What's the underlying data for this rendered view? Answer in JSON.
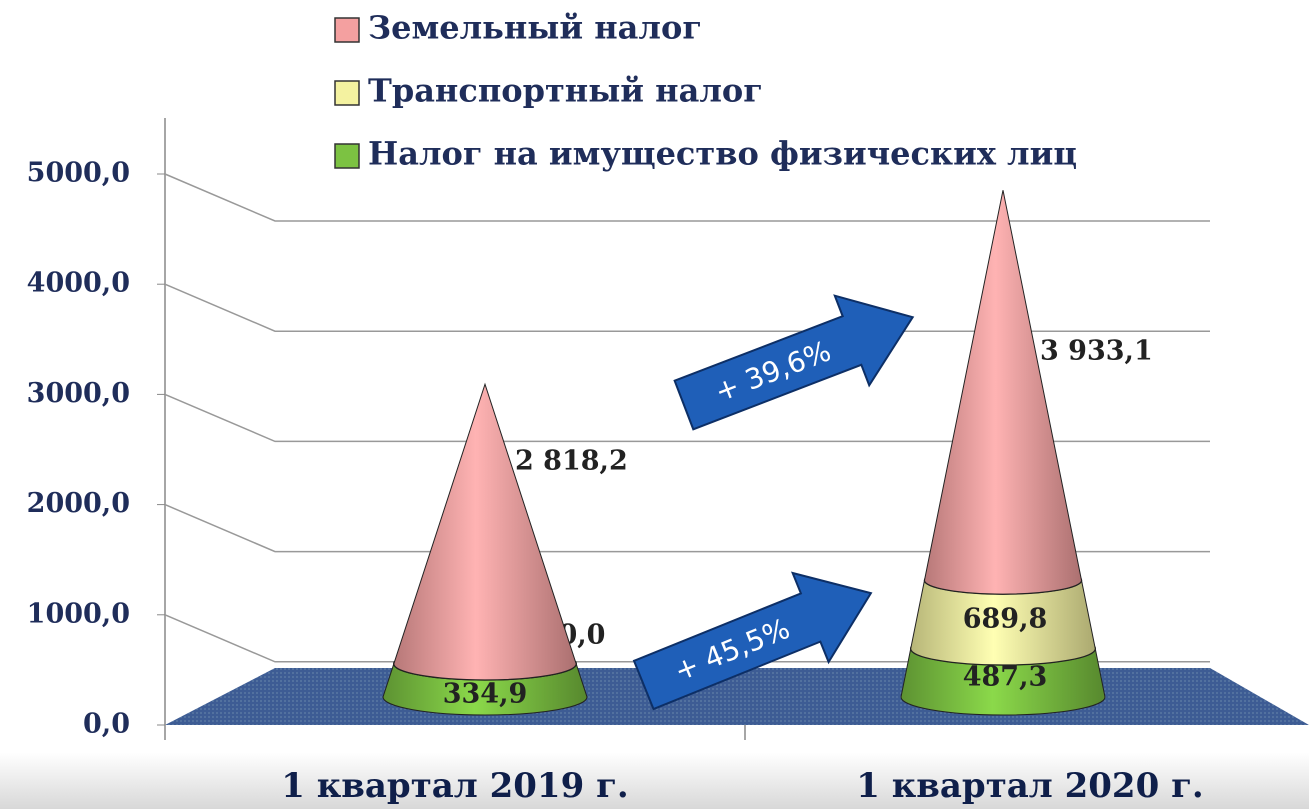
{
  "chart_data": {
    "type": "cone",
    "categories": [
      "1 квартал 2019 г.",
      "1 квартал 2020 г."
    ],
    "series": [
      {
        "name": "Налог на имущество физических лиц",
        "color": "#7cc242",
        "values": [
          334.9,
          487.3
        ],
        "value_labels": [
          "334,9",
          "487,3"
        ]
      },
      {
        "name": "Транспортный налог",
        "color": "#f4f2a0",
        "values": [
          0.0,
          689.8
        ],
        "value_labels": [
          "0,0",
          "689,8"
        ]
      },
      {
        "name": "Земельный налог",
        "color": "#f4a0a0",
        "values": [
          2818.2,
          3933.1
        ],
        "value_labels": [
          "2 818,2",
          "3 933,1"
        ]
      }
    ],
    "ylim": [
      0,
      5000
    ],
    "yticks": [
      {
        "value": 0,
        "label": "0,0"
      },
      {
        "value": 1000,
        "label": "1000,0"
      },
      {
        "value": 2000,
        "label": "2000,0"
      },
      {
        "value": 3000,
        "label": "3000,0"
      },
      {
        "value": 4000,
        "label": "4000,0"
      },
      {
        "value": 5000,
        "label": "5000,0"
      }
    ],
    "grid": true,
    "annotations": [
      "+ 39,6%",
      "+ 45,5%"
    ]
  }
}
